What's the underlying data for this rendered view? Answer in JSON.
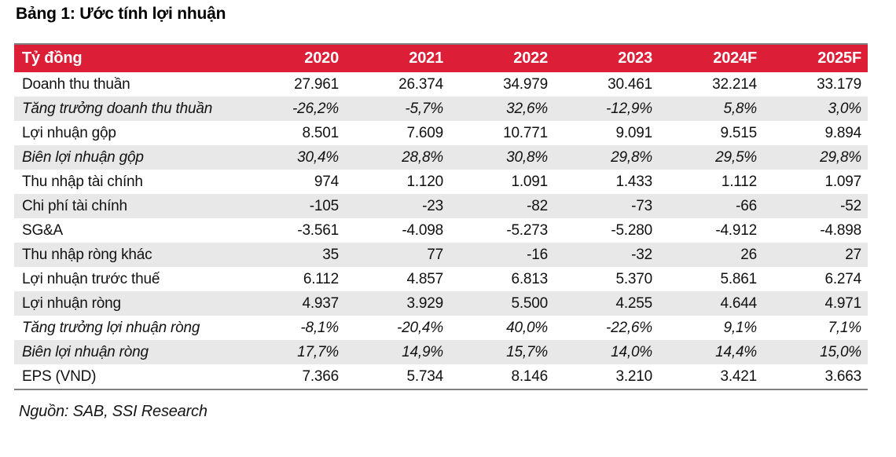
{
  "page": {
    "title": "Bảng 1: Ước tính lợi nhuận",
    "source": "Nguồn: SAB, SSI Research"
  },
  "colors": {
    "header_bg": "#DC1E37",
    "header_text": "#FFFFFF",
    "alt_row_bg": "#E8E8E8",
    "table_border": "#7F7F7F",
    "text": "#111111"
  },
  "chart_data": {
    "type": "table",
    "title": "Bảng 1: Ước tính lợi nhuận",
    "unit_header": "Tỷ đồng",
    "columns": [
      "2020",
      "2021",
      "2022",
      "2023",
      "2024F",
      "2025F"
    ],
    "rows": [
      {
        "label": "Doanh thu thuần",
        "italic": false,
        "values": [
          "27.961",
          "26.374",
          "34.979",
          "30.461",
          "32.214",
          "33.179"
        ]
      },
      {
        "label": "Tăng trưởng doanh thu thuần",
        "italic": true,
        "values": [
          "-26,2%",
          "-5,7%",
          "32,6%",
          "-12,9%",
          "5,8%",
          "3,0%"
        ]
      },
      {
        "label": "Lợi nhuận gộp",
        "italic": false,
        "values": [
          "8.501",
          "7.609",
          "10.771",
          "9.091",
          "9.515",
          "9.894"
        ]
      },
      {
        "label": "Biên lợi nhuận gộp",
        "italic": true,
        "values": [
          "30,4%",
          "28,8%",
          "30,8%",
          "29,8%",
          "29,5%",
          "29,8%"
        ]
      },
      {
        "label": "Thu nhập tài chính",
        "italic": false,
        "values": [
          "974",
          "1.120",
          "1.091",
          "1.433",
          "1.112",
          "1.097"
        ]
      },
      {
        "label": "Chi phí tài chính",
        "italic": false,
        "values": [
          "-105",
          "-23",
          "-82",
          "-73",
          "-66",
          "-52"
        ]
      },
      {
        "label": "SG&A",
        "italic": false,
        "values": [
          "-3.561",
          "-4.098",
          "-5.273",
          "-5.280",
          "-4.912",
          "-4.898"
        ]
      },
      {
        "label": "Thu nhập ròng khác",
        "italic": false,
        "values": [
          "35",
          "77",
          "-16",
          "-32",
          "26",
          "27"
        ]
      },
      {
        "label": "Lợi nhuận trước thuế",
        "italic": false,
        "values": [
          "6.112",
          "4.857",
          "6.813",
          "5.370",
          "5.861",
          "6.274"
        ]
      },
      {
        "label": "Lợi nhuận ròng",
        "italic": false,
        "values": [
          "4.937",
          "3.929",
          "5.500",
          "4.255",
          "4.644",
          "4.971"
        ]
      },
      {
        "label": "Tăng trưởng lợi nhuận ròng",
        "italic": true,
        "values": [
          "-8,1%",
          "-20,4%",
          "40,0%",
          "-22,6%",
          "9,1%",
          "7,1%"
        ]
      },
      {
        "label": "Biên lợi nhuận ròng",
        "italic": true,
        "values": [
          "17,7%",
          "14,9%",
          "15,7%",
          "14,0%",
          "14,4%",
          "15,0%"
        ]
      },
      {
        "label": "EPS (VND)",
        "italic": false,
        "values": [
          "7.366",
          "5.734",
          "8.146",
          "3.210",
          "3.421",
          "3.663"
        ]
      }
    ]
  }
}
